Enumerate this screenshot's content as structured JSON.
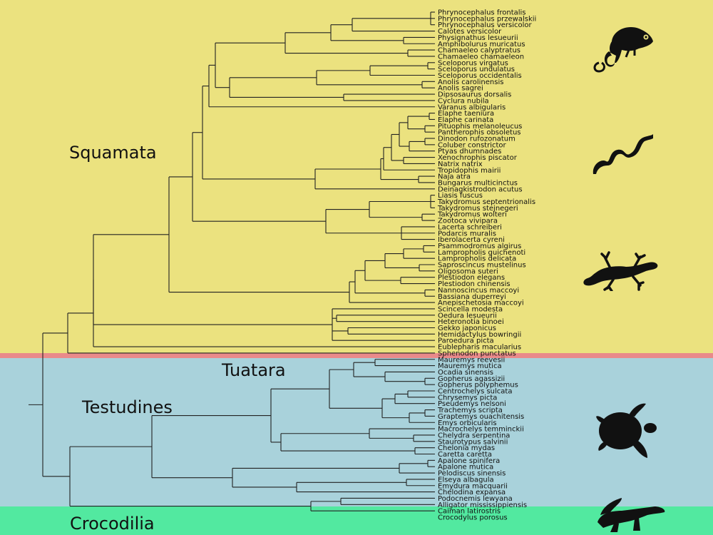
{
  "clades": {
    "squamata": "Squamata",
    "tuatara": "Tuatara",
    "testudines": "Testudines",
    "crocodilia": "Crocodilia"
  },
  "colors": {
    "squamata": "#ebe27f",
    "tuatara": "#e98a8a",
    "testudines": "#a9d2db",
    "crocodilia": "#52e9a0"
  },
  "icons": [
    "chameleon-icon",
    "snake-icon",
    "gecko-icon",
    "turtle-icon",
    "crocodile-icon"
  ],
  "species": [
    "Phrynocephalus frontalis",
    "Phrynocephalus przewalskii",
    "Phrynocephalus versicolor",
    "Calotes versicolor",
    "Physignathus lesueurii",
    "Amphibolurus muricatus",
    "Chamaeleo calyptratus",
    "Chamaeleo chamaeleon",
    "Sceloporus virgatus",
    "Sceloporus undulatus",
    "Sceloporus occidentalis",
    "Anolis carolinensis",
    "Anolis sagrei",
    "Dipsosaurus dorsalis",
    "Cyclura nubila",
    "Varanus albigularis",
    "Elaphe taeniura",
    "Elaphe carinata",
    "Pituophis melanoleucus",
    "Pantherophis obsoletus",
    "Dinodon rufozonatum",
    "Coluber constrictor",
    "Ptyas dhumnades",
    "Xenochrophis piscator",
    "Natrix natrix",
    "Tropidophis mairii",
    "Naja atra",
    "Bungarus multicinctus",
    "Deinagkistrodon acutus",
    "Liasis fuscus",
    "Takydromus septentrionalis",
    "Takydromus stejnegeri",
    "Takydromus wolteri",
    "Zootoca vivipara",
    "Lacerta schreiberi",
    "Podarcis muralis",
    "Iberolacerta cyreni",
    "Psammodromus algirus",
    "Lampropholis guichenoti",
    "Lampropholis delicata",
    "Saproscincus mustelinus",
    "Oligosoma suteri",
    "Plestiodon elegans",
    "Plestiodon chinensis",
    "Nannoscincus maccoyi",
    "Bassiana duperreyi",
    "Anepischetosia maccoyi",
    "Scincella modesta",
    "Oedura lesueurii",
    "Heteronotia binoei",
    "Gekko japonicus",
    "Hemidactylus bowringii",
    "Paroedura picta",
    "Eublepharis macularius",
    "Sphenodon punctatus",
    "Mauremys reevesii",
    "Mauremys mutica",
    "Ocadia sinensis",
    "Gopherus agassizii",
    "Gopherus polyphemus",
    "Centrochelys sulcata",
    "Chrysemys picta",
    "Pseudemys nelsoni",
    "Trachemys scripta",
    "Graptemys ouachitensis",
    "Emys orbicularis",
    "Macrochelys temminckii",
    "Chelydra serpentina",
    "Staurotypus salvinii",
    "Chelonia mydas",
    "Caretta caretta",
    "Apalone spinifera",
    "Apalone mutica",
    "Pelodiscus sinensis",
    "Elseya albagula",
    "Emydura macquarii",
    "Chelodina expansa",
    "Podocnemis lewyana",
    "Alligator mississippiensis",
    "Caiman latirostris",
    "Crocodylus porosus"
  ]
}
